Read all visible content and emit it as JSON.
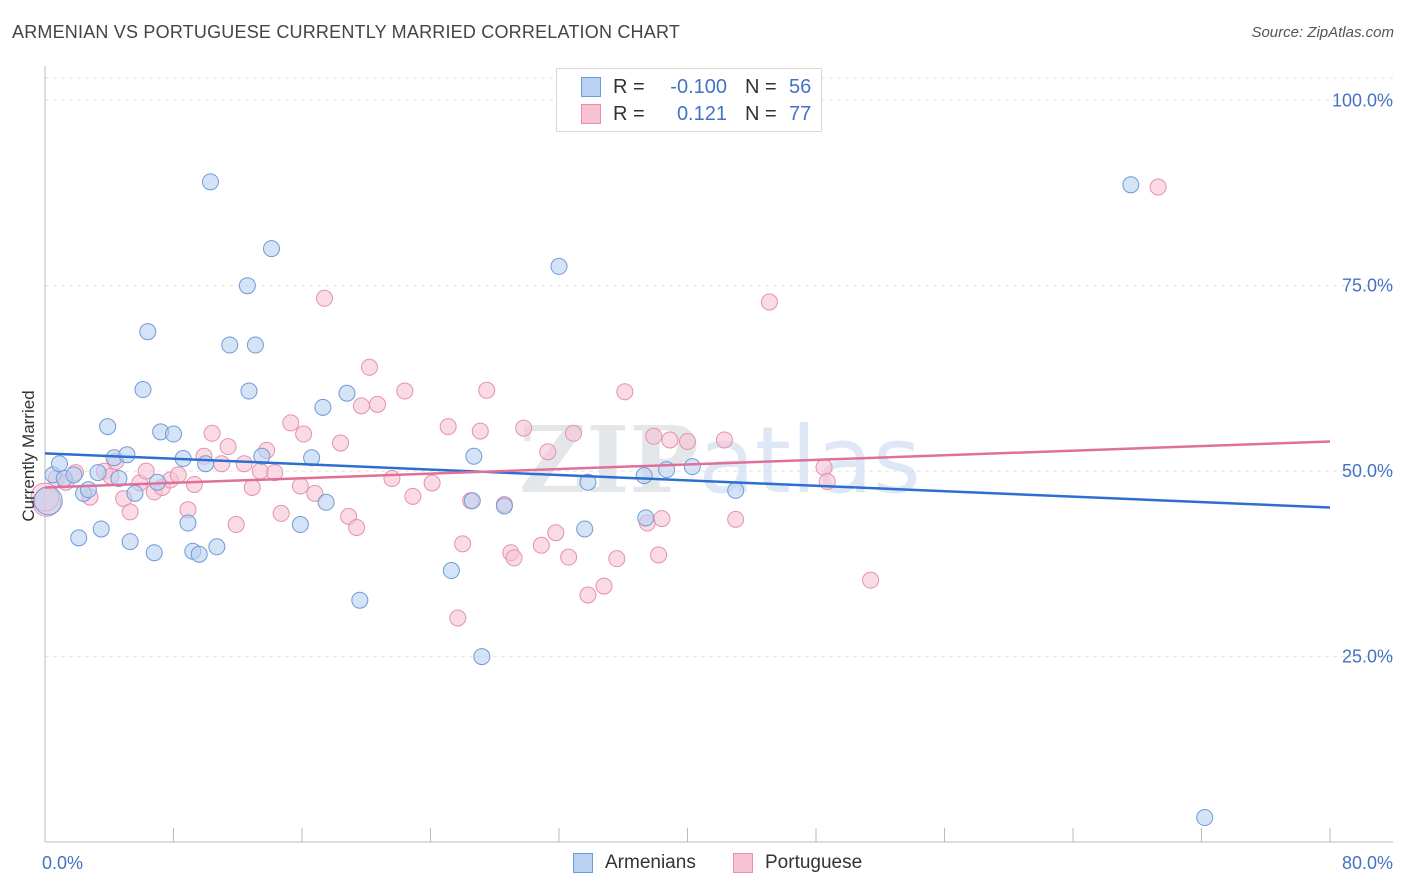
{
  "header": {
    "title": "ARMENIAN VS PORTUGUESE CURRENTLY MARRIED CORRELATION CHART",
    "source": "Source: ZipAtlas.com"
  },
  "watermark": "ZIPatlas",
  "legend": {
    "rows": [
      {
        "r_label": "R =",
        "r_value": "-0.100",
        "n_label": "N =",
        "n_value": "56"
      },
      {
        "r_label": "R =",
        "r_value": "0.121",
        "n_label": "N =",
        "n_value": "77"
      }
    ]
  },
  "bottom_legend": [
    "Armenians",
    "Portuguese"
  ],
  "chart_data": {
    "type": "scatter",
    "title": "ARMENIAN VS PORTUGUESE CURRENTLY MARRIED CORRELATION CHART",
    "ylabel": "Currently Married",
    "xlabel": "",
    "xlim": [
      0,
      80
    ],
    "ylim": [
      0,
      103
    ],
    "x_tick_labels": [
      "0.0%",
      "80.0%"
    ],
    "y_ticks": [
      25,
      50,
      75,
      100
    ],
    "y_tick_labels": [
      "25.0%",
      "50.0%",
      "75.0%",
      "100.0%"
    ],
    "grid": true,
    "legend_position": "top-center",
    "colors": {
      "armenians_fill": "#b9d1f2",
      "armenians_stroke": "#6f9bd6",
      "armenians_line": "#2d6fd1",
      "portuguese_fill": "#f7c3d3",
      "portuguese_stroke": "#e591ad",
      "portuguese_line": "#e0709a",
      "tick_label": "#4472c4"
    },
    "series": [
      {
        "name": "Armenians",
        "r": -0.1,
        "n": 56,
        "trend": {
          "x": [
            0,
            80
          ],
          "y": [
            52.4,
            45.1
          ]
        },
        "points": [
          [
            0.5,
            49.5
          ],
          [
            0.9,
            51
          ],
          [
            1.2,
            49
          ],
          [
            1.8,
            49.5
          ],
          [
            2.1,
            41
          ],
          [
            2.4,
            47
          ],
          [
            2.7,
            47.5
          ],
          [
            3.3,
            49.8
          ],
          [
            3.5,
            42.2
          ],
          [
            3.9,
            56
          ],
          [
            4.3,
            51.8
          ],
          [
            4.6,
            49
          ],
          [
            5.1,
            52.2
          ],
          [
            5.3,
            40.5
          ],
          [
            5.6,
            47
          ],
          [
            6.1,
            61
          ],
          [
            6.4,
            68.8
          ],
          [
            6.8,
            39
          ],
          [
            7.0,
            48.5
          ],
          [
            7.2,
            55.3
          ],
          [
            8.0,
            55
          ],
          [
            8.6,
            51.7
          ],
          [
            8.9,
            43
          ],
          [
            9.2,
            39.2
          ],
          [
            9.6,
            38.8
          ],
          [
            10.0,
            51
          ],
          [
            10.3,
            89
          ],
          [
            10.7,
            39.8
          ],
          [
            11.5,
            67
          ],
          [
            12.6,
            75
          ],
          [
            12.7,
            60.8
          ],
          [
            13.1,
            67
          ],
          [
            13.5,
            52
          ],
          [
            14.1,
            80
          ],
          [
            15.9,
            42.8
          ],
          [
            16.6,
            51.8
          ],
          [
            17.3,
            58.6
          ],
          [
            17.5,
            45.8
          ],
          [
            18.8,
            60.5
          ],
          [
            19.6,
            32.6
          ],
          [
            25.3,
            36.6
          ],
          [
            26.6,
            46
          ],
          [
            26.7,
            52
          ],
          [
            27.2,
            25
          ],
          [
            28.6,
            45.3
          ],
          [
            32.0,
            77.6
          ],
          [
            33.6,
            42.2
          ],
          [
            33.8,
            48.5
          ],
          [
            37.3,
            49.4
          ],
          [
            37.4,
            43.7
          ],
          [
            38.7,
            50.2
          ],
          [
            40.3,
            50.6
          ],
          [
            43.0,
            47.4
          ],
          [
            67.6,
            88.6
          ],
          [
            72.2,
            3.3
          ],
          [
            0.2,
            46
          ]
        ]
      },
      {
        "name": "Portuguese",
        "r": 0.121,
        "n": 77,
        "trend": {
          "x": [
            0,
            80
          ],
          "y": [
            47.8,
            54.0
          ]
        },
        "points": [
          [
            0.1,
            45.8
          ],
          [
            0.7,
            49
          ],
          [
            1.3,
            48.5
          ],
          [
            1.9,
            49.8
          ],
          [
            2.8,
            46.5
          ],
          [
            3.7,
            50
          ],
          [
            4.1,
            49.3
          ],
          [
            4.4,
            51.3
          ],
          [
            4.9,
            46.3
          ],
          [
            5.3,
            44.5
          ],
          [
            5.9,
            48.4
          ],
          [
            6.3,
            50
          ],
          [
            6.8,
            47.2
          ],
          [
            7.3,
            47.8
          ],
          [
            7.8,
            48.8
          ],
          [
            8.3,
            49.5
          ],
          [
            8.9,
            44.8
          ],
          [
            9.3,
            48.2
          ],
          [
            9.9,
            52
          ],
          [
            10.4,
            55.1
          ],
          [
            11.0,
            51
          ],
          [
            11.4,
            53.3
          ],
          [
            11.9,
            42.8
          ],
          [
            12.4,
            51
          ],
          [
            12.9,
            47.8
          ],
          [
            13.4,
            50
          ],
          [
            13.8,
            52.8
          ],
          [
            14.3,
            49.8
          ],
          [
            14.7,
            44.3
          ],
          [
            15.3,
            56.5
          ],
          [
            15.9,
            48
          ],
          [
            16.1,
            55
          ],
          [
            16.8,
            47
          ],
          [
            17.4,
            73.3
          ],
          [
            18.4,
            53.8
          ],
          [
            18.9,
            43.9
          ],
          [
            19.4,
            42.4
          ],
          [
            19.7,
            58.8
          ],
          [
            20.2,
            64
          ],
          [
            20.7,
            59
          ],
          [
            21.6,
            49
          ],
          [
            22.4,
            60.8
          ],
          [
            22.9,
            46.6
          ],
          [
            24.1,
            48.4
          ],
          [
            25.1,
            56
          ],
          [
            25.7,
            30.2
          ],
          [
            26.0,
            40.2
          ],
          [
            26.5,
            46
          ],
          [
            27.1,
            55.4
          ],
          [
            27.5,
            60.9
          ],
          [
            28.6,
            45.5
          ],
          [
            29.0,
            39
          ],
          [
            29.2,
            38.3
          ],
          [
            29.8,
            55.8
          ],
          [
            30.9,
            40
          ],
          [
            31.3,
            52.6
          ],
          [
            31.8,
            41.7
          ],
          [
            32.6,
            38.4
          ],
          [
            32.9,
            55.1
          ],
          [
            33.8,
            33.3
          ],
          [
            34.8,
            34.5
          ],
          [
            35.6,
            38.2
          ],
          [
            36.1,
            60.7
          ],
          [
            37.5,
            43
          ],
          [
            37.9,
            54.7
          ],
          [
            38.2,
            38.7
          ],
          [
            38.4,
            43.6
          ],
          [
            38.9,
            54.2
          ],
          [
            40.0,
            54
          ],
          [
            42.3,
            54.2
          ],
          [
            43.0,
            43.5
          ],
          [
            45.1,
            72.8
          ],
          [
            48.5,
            50.5
          ],
          [
            48.7,
            48.6
          ],
          [
            51.4,
            35.3
          ],
          [
            69.3,
            88.3
          ],
          [
            0.0,
            46.5
          ]
        ]
      }
    ]
  }
}
